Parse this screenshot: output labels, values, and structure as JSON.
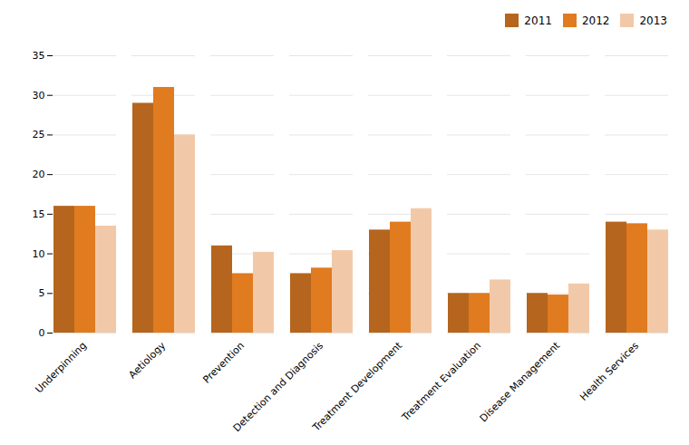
{
  "chart_data": {
    "type": "bar",
    "categories": [
      "Underpinning",
      "Aetiology",
      "Prevention",
      "Detection and Diagnosis",
      "Treatment Development",
      "Treatment Evaluation",
      "Disease Management",
      "Health Services"
    ],
    "series": [
      {
        "name": "2011",
        "color": "#B5651D",
        "values": [
          16,
          29,
          11,
          7.5,
          13,
          5,
          5,
          14
        ]
      },
      {
        "name": "2012",
        "color": "#E07B20",
        "values": [
          16,
          31,
          7.5,
          8.2,
          14,
          5,
          4.8,
          13.8
        ]
      },
      {
        "name": "2013",
        "color": "#F2C9A8",
        "values": [
          13.5,
          25,
          10.2,
          10.4,
          15.7,
          6.7,
          6.2,
          13
        ]
      }
    ],
    "ylim": [
      0,
      35
    ],
    "yticks": [
      0,
      5,
      10,
      15,
      20,
      25,
      30,
      35
    ],
    "grid": true,
    "legend": "upper right"
  }
}
